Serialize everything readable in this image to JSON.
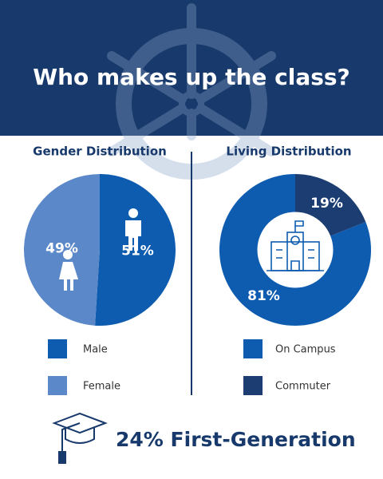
{
  "title": "Who makes up the class?",
  "chart_data": [
    {
      "type": "pie",
      "title": "Gender Distribution",
      "direction": "clockwise",
      "hole": 0,
      "categories": [
        "Male",
        "Female"
      ],
      "values": [
        51,
        49
      ],
      "value_labels": [
        "51%",
        "49%"
      ],
      "colors": [
        "#0e5cb0",
        "#5b88c9"
      ]
    },
    {
      "type": "pie",
      "title": "Living Distribution",
      "direction": "counterclockwise",
      "hole": 0.5,
      "categories": [
        "On Campus",
        "Commuter"
      ],
      "values": [
        81,
        19
      ],
      "value_labels": [
        "81%",
        "19%"
      ],
      "colors": [
        "#0e5cb0",
        "#1b3d72"
      ]
    }
  ],
  "footer": "24% First-Generation"
}
